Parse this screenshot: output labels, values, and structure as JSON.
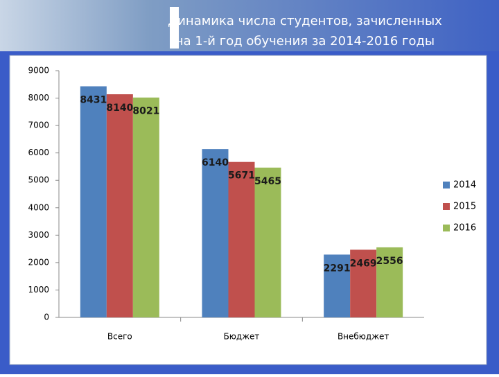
{
  "chart_data": {
    "type": "bar",
    "title": "Динамика числа студентов, зачисленных на 1-й год обучения за 2014-2016 годы",
    "categories": [
      "Всего",
      "Бюджет",
      "Внебюджет"
    ],
    "series": [
      {
        "name": "2014",
        "color": "#4f81bd",
        "values": [
          8431,
          6140,
          2291
        ]
      },
      {
        "name": "2015",
        "color": "#c0504d",
        "values": [
          8140,
          5671,
          2469
        ]
      },
      {
        "name": "2016",
        "color": "#9bbb59",
        "values": [
          8021,
          5465,
          2556
        ]
      }
    ],
    "ylim": [
      0,
      9000
    ],
    "yticks": [
      0,
      1000,
      2000,
      3000,
      4000,
      5000,
      6000,
      7000,
      8000,
      9000
    ],
    "grid": false,
    "legend": "right"
  }
}
